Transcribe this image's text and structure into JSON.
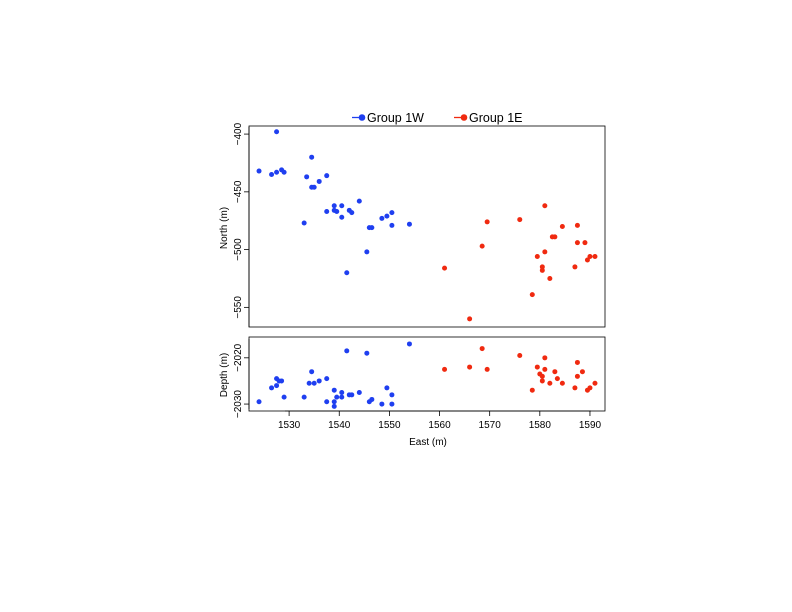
{
  "legend": {
    "placement": "top",
    "entries": [
      {
        "label": "Group 1W",
        "color": "#1f3ff0"
      },
      {
        "label": "Group 1E",
        "color": "#f02a10"
      }
    ]
  },
  "chart_data": [
    {
      "type": "scatter",
      "panel": "top",
      "ylabel": "North (m)",
      "xlabel": "",
      "xlim": [
        1522,
        1593
      ],
      "ylim": [
        -567,
        -393
      ],
      "yticks": [
        -550,
        -500,
        -450,
        -400
      ],
      "yticklabels": [
        "−550",
        "−500",
        "−450",
        "−400"
      ],
      "grid": false,
      "series": [
        {
          "name": "Group 1W",
          "color": "#1f3ff0",
          "x": [
            1527.5,
            1524,
            1526.5,
            1527.5,
            1528.5,
            1529,
            1533.5,
            1534.5,
            1534.5,
            1535,
            1536,
            1537.5,
            1537.5,
            1533,
            1539,
            1539,
            1539.5,
            1540.5,
            1540.5,
            1542,
            1542.5,
            1544,
            1541.5,
            1545.5,
            1546,
            1546.5,
            1548.5,
            1549.5,
            1550.5,
            1550.5,
            1554
          ],
          "y": [
            -398,
            -432,
            -435,
            -433,
            -431,
            -433,
            -437,
            -420,
            -446,
            -446,
            -441,
            -436,
            -467,
            -477,
            -462,
            -466,
            -467,
            -472,
            -462,
            -466,
            -468,
            -458,
            -520,
            -502,
            -481,
            -481,
            -473,
            -471,
            -468,
            -479,
            -478
          ]
        },
        {
          "name": "Group 1E",
          "color": "#f02a10",
          "x": [
            1561,
            1566,
            1568.5,
            1569.5,
            1576,
            1578.5,
            1579.5,
            1580.5,
            1580.5,
            1581,
            1581,
            1582,
            1582.5,
            1583,
            1584.5,
            1587,
            1587.5,
            1587.5,
            1589,
            1589.5,
            1590,
            1591
          ],
          "y": [
            -516,
            -560,
            -497,
            -476,
            -474,
            -539,
            -506,
            -515,
            -518,
            -462,
            -502,
            -525,
            -489,
            -489,
            -480,
            -515,
            -479,
            -494,
            -494,
            -509,
            -506,
            -506
          ]
        }
      ]
    },
    {
      "type": "scatter",
      "panel": "bottom",
      "ylabel": "Depth (m)",
      "xlabel": "East (m)",
      "xlim": [
        1522,
        1593
      ],
      "ylim": [
        -2031.5,
        -2015.5
      ],
      "xticks": [
        1530,
        1540,
        1550,
        1560,
        1570,
        1580,
        1590
      ],
      "xticklabels": [
        "1530",
        "1540",
        "1550",
        "1560",
        "1570",
        "1580",
        "1590"
      ],
      "yticks": [
        -2030,
        -2020
      ],
      "yticklabels": [
        "−2030",
        "−2020"
      ],
      "grid": false,
      "series": [
        {
          "name": "Group 1W",
          "color": "#1f3ff0",
          "x": [
            1524,
            1526.5,
            1527.5,
            1527.5,
            1528,
            1528.5,
            1529,
            1533,
            1534,
            1534.5,
            1535,
            1536,
            1537.5,
            1537.5,
            1539,
            1539,
            1539,
            1539.5,
            1540.5,
            1540.5,
            1541.5,
            1542,
            1542.5,
            1544,
            1545.5,
            1546,
            1546.5,
            1548.5,
            1549.5,
            1550.5,
            1550.5,
            1554
          ],
          "y": [
            -2029.5,
            -2026.5,
            -2024.5,
            -2026,
            -2025,
            -2025,
            -2028.5,
            -2028.5,
            -2025.5,
            -2023,
            -2025.5,
            -2025,
            -2024.5,
            -2029.5,
            -2027,
            -2029.5,
            -2030.5,
            -2028.5,
            -2028.5,
            -2027.5,
            -2018.5,
            -2028,
            -2028,
            -2027.5,
            -2019,
            -2029.5,
            -2029,
            -2030,
            -2026.5,
            -2028,
            -2030,
            -2017
          ]
        },
        {
          "name": "Group 1E",
          "color": "#f02a10",
          "x": [
            1561,
            1566,
            1568.5,
            1569.5,
            1576,
            1578.5,
            1579.5,
            1580,
            1580.5,
            1580.5,
            1581,
            1581,
            1582,
            1583,
            1583.5,
            1584.5,
            1587,
            1587.5,
            1587.5,
            1588.5,
            1589.5,
            1590,
            1591
          ],
          "y": [
            -2022.5,
            -2022,
            -2018,
            -2022.5,
            -2019.5,
            -2027,
            -2022,
            -2023.5,
            -2025,
            -2024,
            -2020,
            -2022.5,
            -2025.5,
            -2023,
            -2024.5,
            -2025.5,
            -2026.5,
            -2024,
            -2021,
            -2023,
            -2027,
            -2026.5,
            -2025.5
          ]
        }
      ]
    }
  ]
}
